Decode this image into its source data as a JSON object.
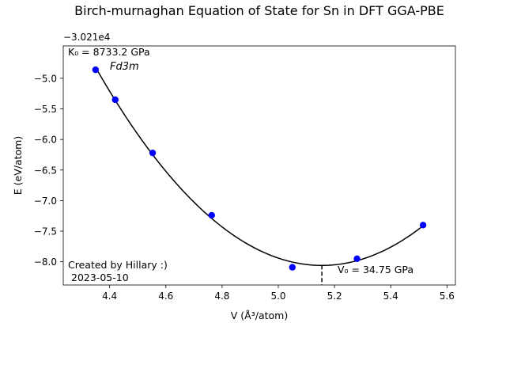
{
  "chart_data": {
    "type": "scatter",
    "title": "Birch-murnaghan Equation of State for Sn in DFT GGA-PBE",
    "xlabel": "V (Å³/atom)",
    "ylabel": "E (eV/atom)",
    "y_offset_label": "−3.021e4",
    "xlim": [
      4.235,
      5.63
    ],
    "ylim": [
      -8.38,
      -4.47
    ],
    "xticks": [
      4.4,
      4.6,
      4.8,
      5.0,
      5.2,
      5.4,
      5.6
    ],
    "xtick_labels": [
      "4.4",
      "4.6",
      "4.8",
      "5.0",
      "5.2",
      "5.4",
      "5.6"
    ],
    "yticks": [
      -5.0,
      -5.5,
      -6.0,
      -6.5,
      -7.0,
      -7.5,
      -8.0
    ],
    "ytick_labels": [
      "−5.0",
      "−5.5",
      "−6.0",
      "−6.5",
      "−7.0",
      "−7.5",
      "−8.0"
    ],
    "grid": false,
    "series": [
      {
        "kind": "points",
        "color": "#0000ff",
        "x": [
          4.35,
          4.42,
          4.553,
          4.763,
          5.05,
          5.28,
          5.515
        ],
        "y": [
          -4.86,
          -5.35,
          -6.22,
          -7.24,
          -8.09,
          -7.95,
          -7.4
        ]
      },
      {
        "kind": "fit",
        "color": "#000000",
        "equilibrium_x": 5.155,
        "equilibrium_y": -8.06,
        "x_range": [
          4.35,
          5.515
        ]
      }
    ],
    "annotations": {
      "bulk_modulus": "K₀ = 8733.2 GPa",
      "space_group": "Fd3m",
      "equilibrium_volume": "V₀ = 34.75 GPa",
      "credit": "Created by Hillary :)",
      "date": "2023-05-10"
    }
  }
}
